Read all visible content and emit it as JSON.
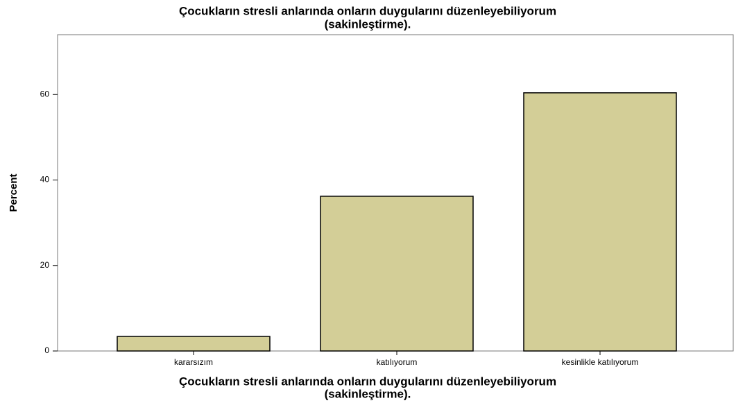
{
  "chart_data": {
    "type": "bar",
    "title": [
      "Çocukların stresli anlarında onların duygularını düzenleyebiliyorum",
      "(sakinleştirme)."
    ],
    "x_label": [
      "Çocukların stresli anlarında onların duygularını düzenleyebiliyorum",
      "(sakinleştirme)."
    ],
    "y_label": "Percent",
    "categories": [
      "kararsızım",
      "katılıyorum",
      "kesinlikle katılıyorum"
    ],
    "values": [
      3.4,
      36.2,
      60.4
    ],
    "color": "#d3ce97",
    "ylim": [
      0,
      74
    ],
    "yticks": [
      0,
      20,
      40,
      60
    ],
    "grid": false
  }
}
